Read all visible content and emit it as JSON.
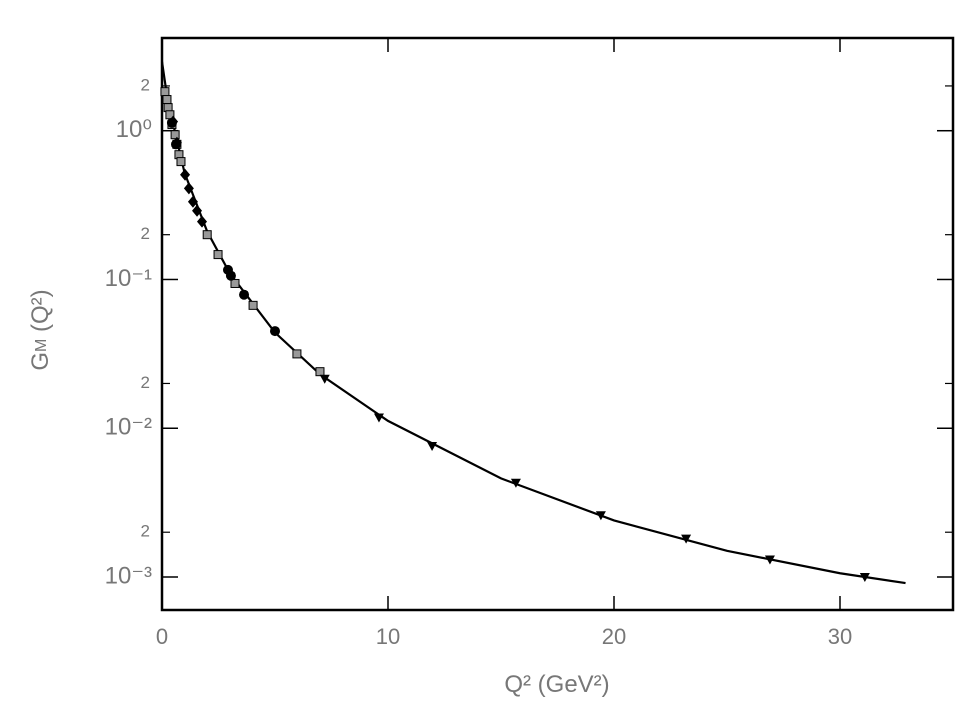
{
  "chart_data": {
    "type": "scatter",
    "xlabel": {
      "main": "Q²",
      "rest": " (GeV²)"
    },
    "ylabel": {
      "main": "G",
      "sub": "M",
      "rest": " (Q²)"
    },
    "xlim": [
      0,
      35
    ],
    "xticks": [
      0,
      10,
      20,
      30
    ],
    "ylim": [
      0.0006,
      4.2
    ],
    "log_y": true,
    "yticks": [
      {
        "value": 1,
        "label": "10⁰"
      },
      {
        "value": 0.1,
        "label": "10⁻¹"
      },
      {
        "value": 0.01,
        "label": "10⁻²"
      },
      {
        "value": 0.001,
        "label": "10⁻³"
      }
    ],
    "yminor_labeled": [
      2,
      {
        "value": 0.2,
        "label": "2"
      },
      {
        "value": 0.02,
        "label": "2"
      },
      {
        "value": 0.002,
        "label": "2"
      }
    ],
    "series": [
      {
        "marker": "square",
        "color": "#999999",
        "x": [
          0.13,
          0.22,
          0.27,
          0.35,
          0.44,
          0.58,
          0.66,
          0.75,
          0.84,
          2.0,
          2.48,
          3.23,
          4.03,
          5.97,
          6.99
        ],
        "values": [
          1.83,
          1.62,
          1.43,
          1.28,
          1.1,
          0.94,
          0.81,
          0.69,
          0.62,
          0.2,
          0.147,
          0.094,
          0.067,
          0.0316,
          0.024
        ]
      },
      {
        "marker": "diamond",
        "color": "#000000",
        "x": [
          0.49,
          0.66,
          1.02,
          1.19,
          1.37,
          1.55,
          1.77
        ],
        "values": [
          1.15,
          0.83,
          0.506,
          0.41,
          0.333,
          0.29,
          0.245
        ]
      },
      {
        "marker": "circle",
        "color": "#000000",
        "x": [
          0.44,
          0.62,
          2.92,
          3.05,
          3.63,
          5.0
        ],
        "values": [
          1.13,
          0.81,
          0.116,
          0.106,
          0.079,
          0.045
        ]
      },
      {
        "marker": "triangle-down",
        "color": "#000000",
        "x": [
          7.2,
          9.6,
          11.95,
          15.66,
          19.42,
          23.19,
          26.9,
          31.1
        ],
        "values": [
          0.0215,
          0.0118,
          0.0076,
          0.0043,
          0.0026,
          0.00181,
          0.00131,
          0.001
        ]
      }
    ],
    "curve": {
      "color": "#000000",
      "x": [
        0,
        0.25,
        0.5,
        1,
        2,
        3,
        5,
        7,
        10,
        15,
        20,
        25,
        30,
        32.9
      ],
      "values": [
        2.91,
        1.6,
        1.1,
        0.52,
        0.21,
        0.11,
        0.044,
        0.023,
        0.0112,
        0.0046,
        0.0024,
        0.0015,
        0.00106,
        0.00091
      ]
    }
  }
}
